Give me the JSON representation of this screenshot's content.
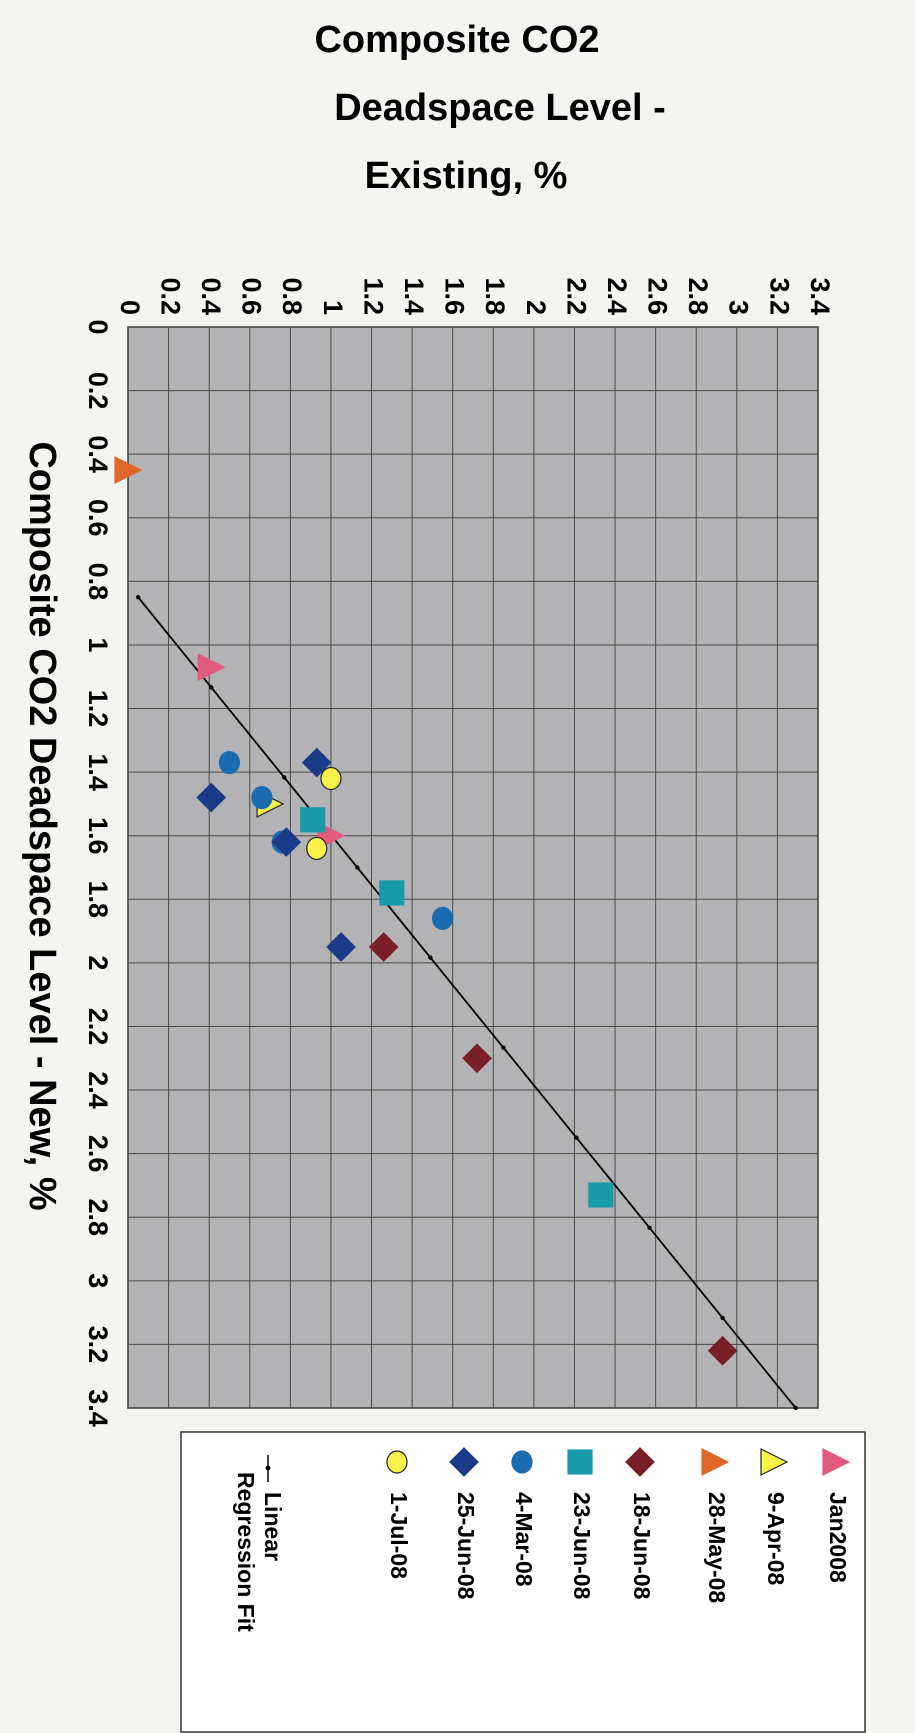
{
  "chart_data": {
    "type": "scatter",
    "orientation": "rotated 90 degrees clockwise",
    "title": "",
    "xlabel": "Composite CO2 Deadspace Level - New, %",
    "ylabel_lines": [
      "Composite CO2",
      "Deadspace Level  -",
      "Existing, %"
    ],
    "xlim": [
      0,
      3.4
    ],
    "ylim": [
      0,
      3.4
    ],
    "x_ticks": [
      "0",
      "0.2",
      "0.4",
      "0.6",
      "0.8",
      "1",
      "1.2",
      "1.4",
      "1.6",
      "1.8",
      "2",
      "2.2",
      "2.4",
      "2.6",
      "2.8",
      "3",
      "3.2",
      "3.4"
    ],
    "y_ticks": [
      "0",
      "0.2",
      "0.4",
      "0.6",
      "0.8",
      "1",
      "1.2",
      "1.4",
      "1.6",
      "1.8",
      "2",
      "2.2",
      "2.4",
      "2.6",
      "2.8",
      "3",
      "3.2",
      "3.4"
    ],
    "grid": true,
    "legend_position": "right",
    "plot_background": "#b3b3b6",
    "series": [
      {
        "name": "Jan2008",
        "marker": "triangle-up",
        "color": "#e05a7e",
        "points": [
          {
            "x": 1.07,
            "y": 0.41
          },
          {
            "x": 1.6,
            "y": 1.0
          }
        ]
      },
      {
        "name": "9-Apr-08",
        "marker": "triangle-up",
        "color": "#f7f24a",
        "points": [
          {
            "x": 1.5,
            "y": 0.7
          }
        ]
      },
      {
        "name": "28-May-08",
        "marker": "triangle-up",
        "color": "#e0662a",
        "points": [
          {
            "x": 0.45,
            "y": 0.0
          }
        ]
      },
      {
        "name": "18-Jun-08",
        "marker": "diamond",
        "color": "#7a1f27",
        "points": [
          {
            "x": 1.95,
            "y": 1.26
          },
          {
            "x": 2.3,
            "y": 1.72
          },
          {
            "x": 3.22,
            "y": 2.93
          }
        ]
      },
      {
        "name": "23-Jun-08",
        "marker": "square",
        "color": "#1a9aa8",
        "points": [
          {
            "x": 1.55,
            "y": 0.91
          },
          {
            "x": 1.78,
            "y": 1.3
          },
          {
            "x": 2.73,
            "y": 2.33
          }
        ]
      },
      {
        "name": "4-Mar-08",
        "marker": "circle",
        "color": "#1a6bb0",
        "points": [
          {
            "x": 1.37,
            "y": 0.5
          },
          {
            "x": 1.48,
            "y": 0.66
          },
          {
            "x": 1.62,
            "y": 0.76
          },
          {
            "x": 1.86,
            "y": 1.55
          }
        ]
      },
      {
        "name": "25-Jun-08",
        "marker": "diamond",
        "color": "#1a3a8a",
        "points": [
          {
            "x": 1.37,
            "y": 0.93
          },
          {
            "x": 1.48,
            "y": 0.41
          },
          {
            "x": 1.62,
            "y": 0.78
          },
          {
            "x": 1.95,
            "y": 1.05
          }
        ]
      },
      {
        "name": "1-Jul-08",
        "marker": "circle",
        "color": "#f7f24a",
        "points": [
          {
            "x": 1.42,
            "y": 1.0
          },
          {
            "x": 1.64,
            "y": 0.93
          }
        ]
      }
    ],
    "fit": {
      "name": "Linear\nRegression Fit",
      "color": "#000000",
      "x": [
        0.85,
        3.4
      ],
      "y": [
        0.05,
        3.29
      ]
    }
  },
  "legend_labels": [
    "Jan2008",
    "9-Apr-08",
    "28-May-08",
    "18-Jun-08",
    "23-Jun-08",
    "4-Mar-08",
    "25-Jun-08",
    "1-Jul-08"
  ],
  "legend_fit_lines": [
    "Linear",
    "Regression Fit"
  ],
  "colors": {
    "grid": "#4a4a4a",
    "plot_background": "#b3b3b6",
    "page_background": "#f4f4f1"
  }
}
